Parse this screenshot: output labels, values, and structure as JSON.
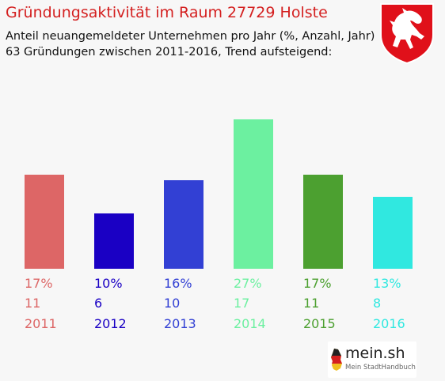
{
  "header": {
    "title": "Gründungsaktivität im Raum 27729 Holste",
    "subtitle_line1": "Anteil neuangemeldeter Unternehmen pro Jahr (%, Anzahl, Jahr)",
    "subtitle_line2": "63 Gründungen zwischen 2011-2016, Trend aufsteigend:"
  },
  "crest": {
    "icon": "lower-saxony-horse-crest-icon",
    "color": "#e0101a"
  },
  "logo": {
    "name": "mein.sh",
    "tagline": "Mein StadtHandbuch"
  },
  "chart_data": {
    "type": "bar",
    "categories": [
      "2011",
      "2012",
      "2013",
      "2014",
      "2015",
      "2016"
    ],
    "values": [
      17,
      10,
      16,
      27,
      17,
      13
    ],
    "counts": [
      11,
      6,
      10,
      17,
      11,
      8
    ],
    "percent_labels": [
      "17%",
      "10%",
      "16%",
      "27%",
      "17%",
      "13%"
    ],
    "count_labels": [
      "11",
      "6",
      "10",
      "17",
      "11",
      "8"
    ],
    "colors": [
      "#dd6666",
      "#1a00c4",
      "#3240d4",
      "#6cf0a0",
      "#4ca030",
      "#30e8e0"
    ],
    "ylim": [
      0,
      27
    ],
    "title": "Gründungsaktivität im Raum 27729 Holste",
    "xlabel": "",
    "ylabel": ""
  }
}
